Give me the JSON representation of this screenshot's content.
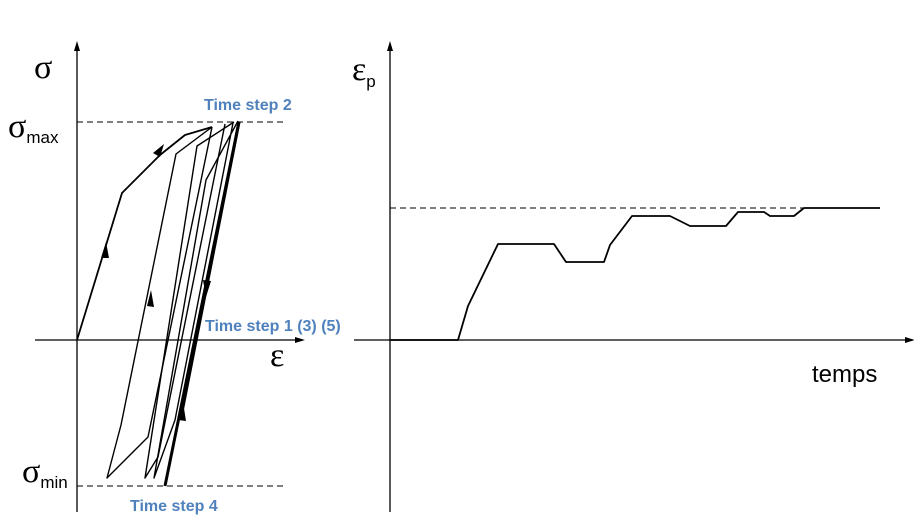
{
  "colors": {
    "annotation": "#4F81BD",
    "line": "#000000"
  },
  "left_diagram": {
    "y_symbol": "σ",
    "x_symbol": "ε",
    "sigma_max": {
      "base": "σ",
      "sub": "max"
    },
    "sigma_min": {
      "base": "σ",
      "sub": "min"
    },
    "annotations": {
      "step2": "Time step 2",
      "step135": "Time step 1 (3) (5)",
      "step4": "Time step 4"
    }
  },
  "right_diagram": {
    "y_symbol": {
      "base": "ε",
      "sub": "p"
    },
    "x_label": "temps"
  }
}
